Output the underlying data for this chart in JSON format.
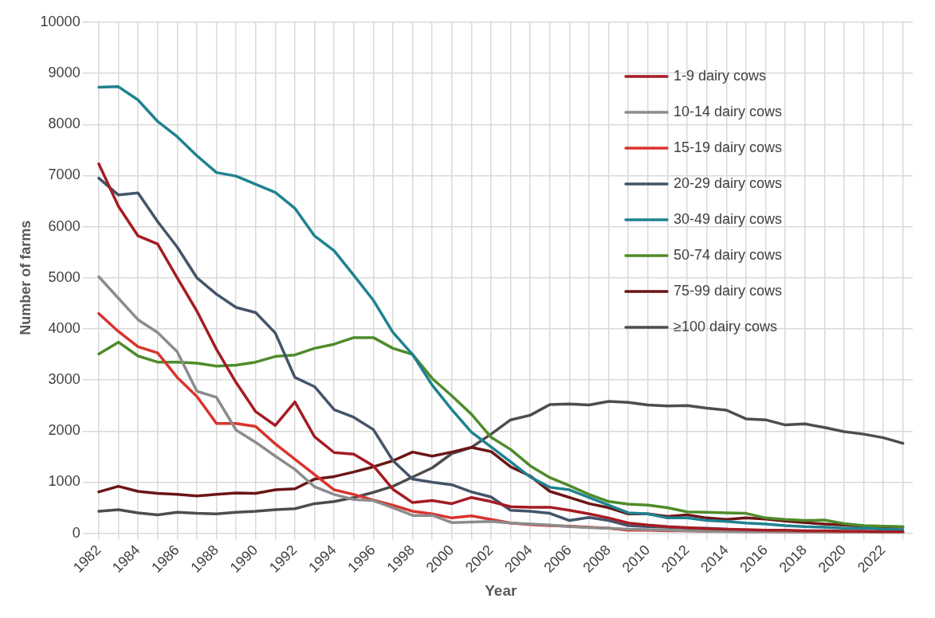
{
  "chart_data": {
    "type": "line",
    "xlabel": "Year",
    "ylabel": "Number of farms",
    "categories": [
      "1982",
      null,
      "1984",
      null,
      "1986",
      null,
      "1988",
      null,
      "1990",
      null,
      "1992",
      null,
      "1994",
      null,
      "1996",
      null,
      "1998",
      null,
      "2000",
      null,
      "2002",
      null,
      "2004",
      null,
      "2006",
      null,
      "2008",
      null,
      "2010",
      null,
      "2012",
      null,
      "2014",
      null,
      "2016",
      null,
      "2018",
      null,
      "2020",
      null,
      "2022",
      null
    ],
    "series": [
      {
        "name": "1-9 dairy cows",
        "color": "#a51c24",
        "values": [
          7230,
          6400,
          5820,
          5660,
          5000,
          4350,
          3600,
          2950,
          2380,
          2110,
          2570,
          1890,
          1580,
          1550,
          1320,
          860,
          600,
          640,
          580,
          700,
          620,
          520,
          510,
          510,
          450,
          380,
          300,
          200,
          160,
          130,
          110,
          90,
          80,
          70,
          60,
          60,
          50,
          50,
          40,
          40,
          30,
          30
        ]
      },
      {
        "name": "10-14 dairy cows",
        "color": "#8c8c8c",
        "values": [
          5020,
          4600,
          4180,
          3930,
          3550,
          2780,
          2660,
          2020,
          1780,
          1510,
          1250,
          910,
          760,
          660,
          640,
          500,
          350,
          350,
          210,
          220,
          230,
          200,
          180,
          160,
          130,
          110,
          100,
          80,
          70,
          60,
          50,
          40,
          30,
          30,
          30,
          30,
          20,
          20,
          20,
          20,
          10,
          10
        ]
      },
      {
        "name": "15-19 dairy cows",
        "color": "#d9332d",
        "values": [
          4300,
          3950,
          3650,
          3530,
          3050,
          2680,
          2150,
          2150,
          2090,
          1750,
          1450,
          1150,
          850,
          760,
          650,
          550,
          430,
          380,
          300,
          340,
          270,
          200,
          170,
          150,
          140,
          120,
          100,
          60,
          60,
          50,
          50,
          40,
          40,
          30,
          30,
          20,
          20,
          20,
          20,
          20,
          10,
          20
        ]
      },
      {
        "name": "20-29 dairy cows",
        "color": "#44546a",
        "values": [
          6950,
          6620,
          6660,
          6100,
          5600,
          5000,
          4680,
          4420,
          4320,
          3920,
          3050,
          2870,
          2420,
          2270,
          2030,
          1420,
          1060,
          1000,
          950,
          810,
          710,
          450,
          430,
          390,
          250,
          310,
          250,
          150,
          130,
          120,
          100,
          100,
          80,
          40,
          50,
          40,
          30,
          30,
          30,
          30,
          30,
          30
        ]
      },
      {
        "name": "30-49 dairy cows",
        "color": "#1f8291",
        "values": [
          8730,
          8740,
          8480,
          8060,
          7760,
          7390,
          7060,
          6990,
          6830,
          6670,
          6360,
          5820,
          5530,
          5050,
          4560,
          3930,
          3500,
          2900,
          2420,
          1980,
          1690,
          1400,
          1100,
          900,
          850,
          700,
          550,
          400,
          380,
          300,
          300,
          250,
          230,
          200,
          180,
          150,
          130,
          120,
          100,
          100,
          80,
          70
        ]
      },
      {
        "name": "50-74 dairy cows",
        "color": "#4e8c2a",
        "values": [
          3510,
          3740,
          3470,
          3350,
          3350,
          3330,
          3270,
          3290,
          3350,
          3460,
          3490,
          3620,
          3700,
          3830,
          3830,
          3620,
          3500,
          3030,
          2690,
          2330,
          1880,
          1640,
          1320,
          1090,
          930,
          760,
          620,
          570,
          550,
          500,
          420,
          410,
          400,
          390,
          300,
          270,
          250,
          260,
          190,
          150,
          140,
          130
        ]
      },
      {
        "name": "75-99 dairy cows",
        "color": "#6b1515",
        "values": [
          810,
          920,
          820,
          780,
          760,
          730,
          760,
          790,
          780,
          850,
          870,
          1060,
          1110,
          1200,
          1300,
          1420,
          1590,
          1510,
          1590,
          1680,
          1600,
          1300,
          1120,
          820,
          700,
          580,
          500,
          380,
          380,
          330,
          360,
          300,
          270,
          300,
          280,
          240,
          210,
          180,
          160,
          140,
          130,
          120
        ]
      },
      {
        "name": "≥100 dairy cows",
        "color": "#4d4d4d",
        "values": [
          430,
          460,
          400,
          360,
          410,
          390,
          380,
          410,
          430,
          460,
          480,
          580,
          620,
          700,
          800,
          920,
          1100,
          1280,
          1560,
          1680,
          1940,
          2220,
          2310,
          2520,
          2530,
          2510,
          2580,
          2560,
          2510,
          2490,
          2500,
          2450,
          2410,
          2240,
          2220,
          2120,
          2140,
          2070,
          1990,
          1940,
          1870,
          1760
        ]
      }
    ],
    "ylim": [
      0,
      10000
    ],
    "yticks": [
      0,
      1000,
      2000,
      3000,
      4000,
      5000,
      6000,
      7000,
      8000,
      9000,
      10000
    ],
    "grid": true,
    "legend": "top right",
    "marker": "none",
    "line_style": "solid"
  }
}
